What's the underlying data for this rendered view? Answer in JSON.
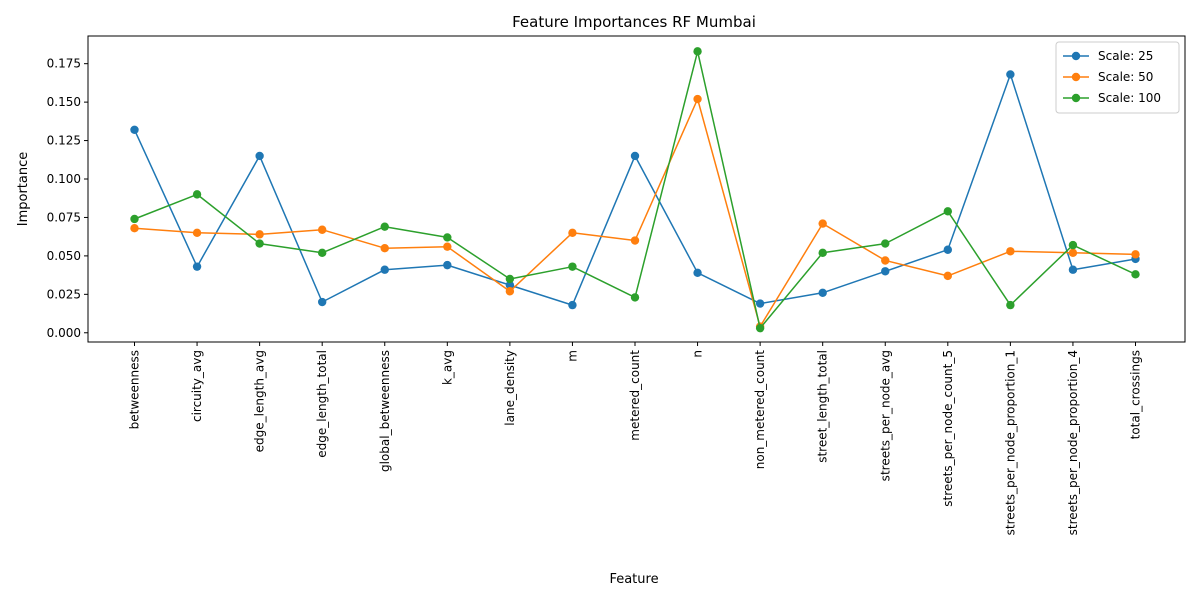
{
  "chart_data": {
    "type": "line",
    "title": "Feature Importances RF Mumbai",
    "xlabel": "Feature",
    "ylabel": "Importance",
    "ylim": [
      -0.006,
      0.193
    ],
    "yticks": [
      0.0,
      0.025,
      0.05,
      0.075,
      0.1,
      0.125,
      0.15,
      0.175
    ],
    "ytick_labels": [
      "0.000",
      "0.025",
      "0.050",
      "0.075",
      "0.100",
      "0.125",
      "0.150",
      "0.175"
    ],
    "grid": false,
    "legend_position": "top-right",
    "categories": [
      "betweenness",
      "circuity_avg",
      "edge_length_avg",
      "edge_length_total",
      "global_betweenness",
      "k_avg",
      "lane_density",
      "m",
      "metered_count",
      "n",
      "non_metered_count",
      "street_length_total",
      "streets_per_node_avg",
      "streets_per_node_count_5",
      "streets_per_node_proportion_1",
      "streets_per_node_proportion_4",
      "total_crossings"
    ],
    "series": [
      {
        "name": "Scale: 25",
        "color": "#1f77b4",
        "values": [
          0.132,
          0.043,
          0.115,
          0.02,
          0.041,
          0.044,
          0.031,
          0.018,
          0.115,
          0.039,
          0.019,
          0.026,
          0.04,
          0.054,
          0.168,
          0.041,
          0.048
        ]
      },
      {
        "name": "Scale: 50",
        "color": "#ff7f0e",
        "values": [
          0.068,
          0.065,
          0.064,
          0.067,
          0.055,
          0.056,
          0.027,
          0.065,
          0.06,
          0.152,
          0.004,
          0.071,
          0.047,
          0.037,
          0.053,
          0.052,
          0.051
        ]
      },
      {
        "name": "Scale: 100",
        "color": "#2ca02c",
        "values": [
          0.074,
          0.09,
          0.058,
          0.052,
          0.069,
          0.062,
          0.035,
          0.043,
          0.023,
          0.183,
          0.003,
          0.052,
          0.058,
          0.079,
          0.018,
          0.057,
          0.038
        ]
      }
    ]
  }
}
